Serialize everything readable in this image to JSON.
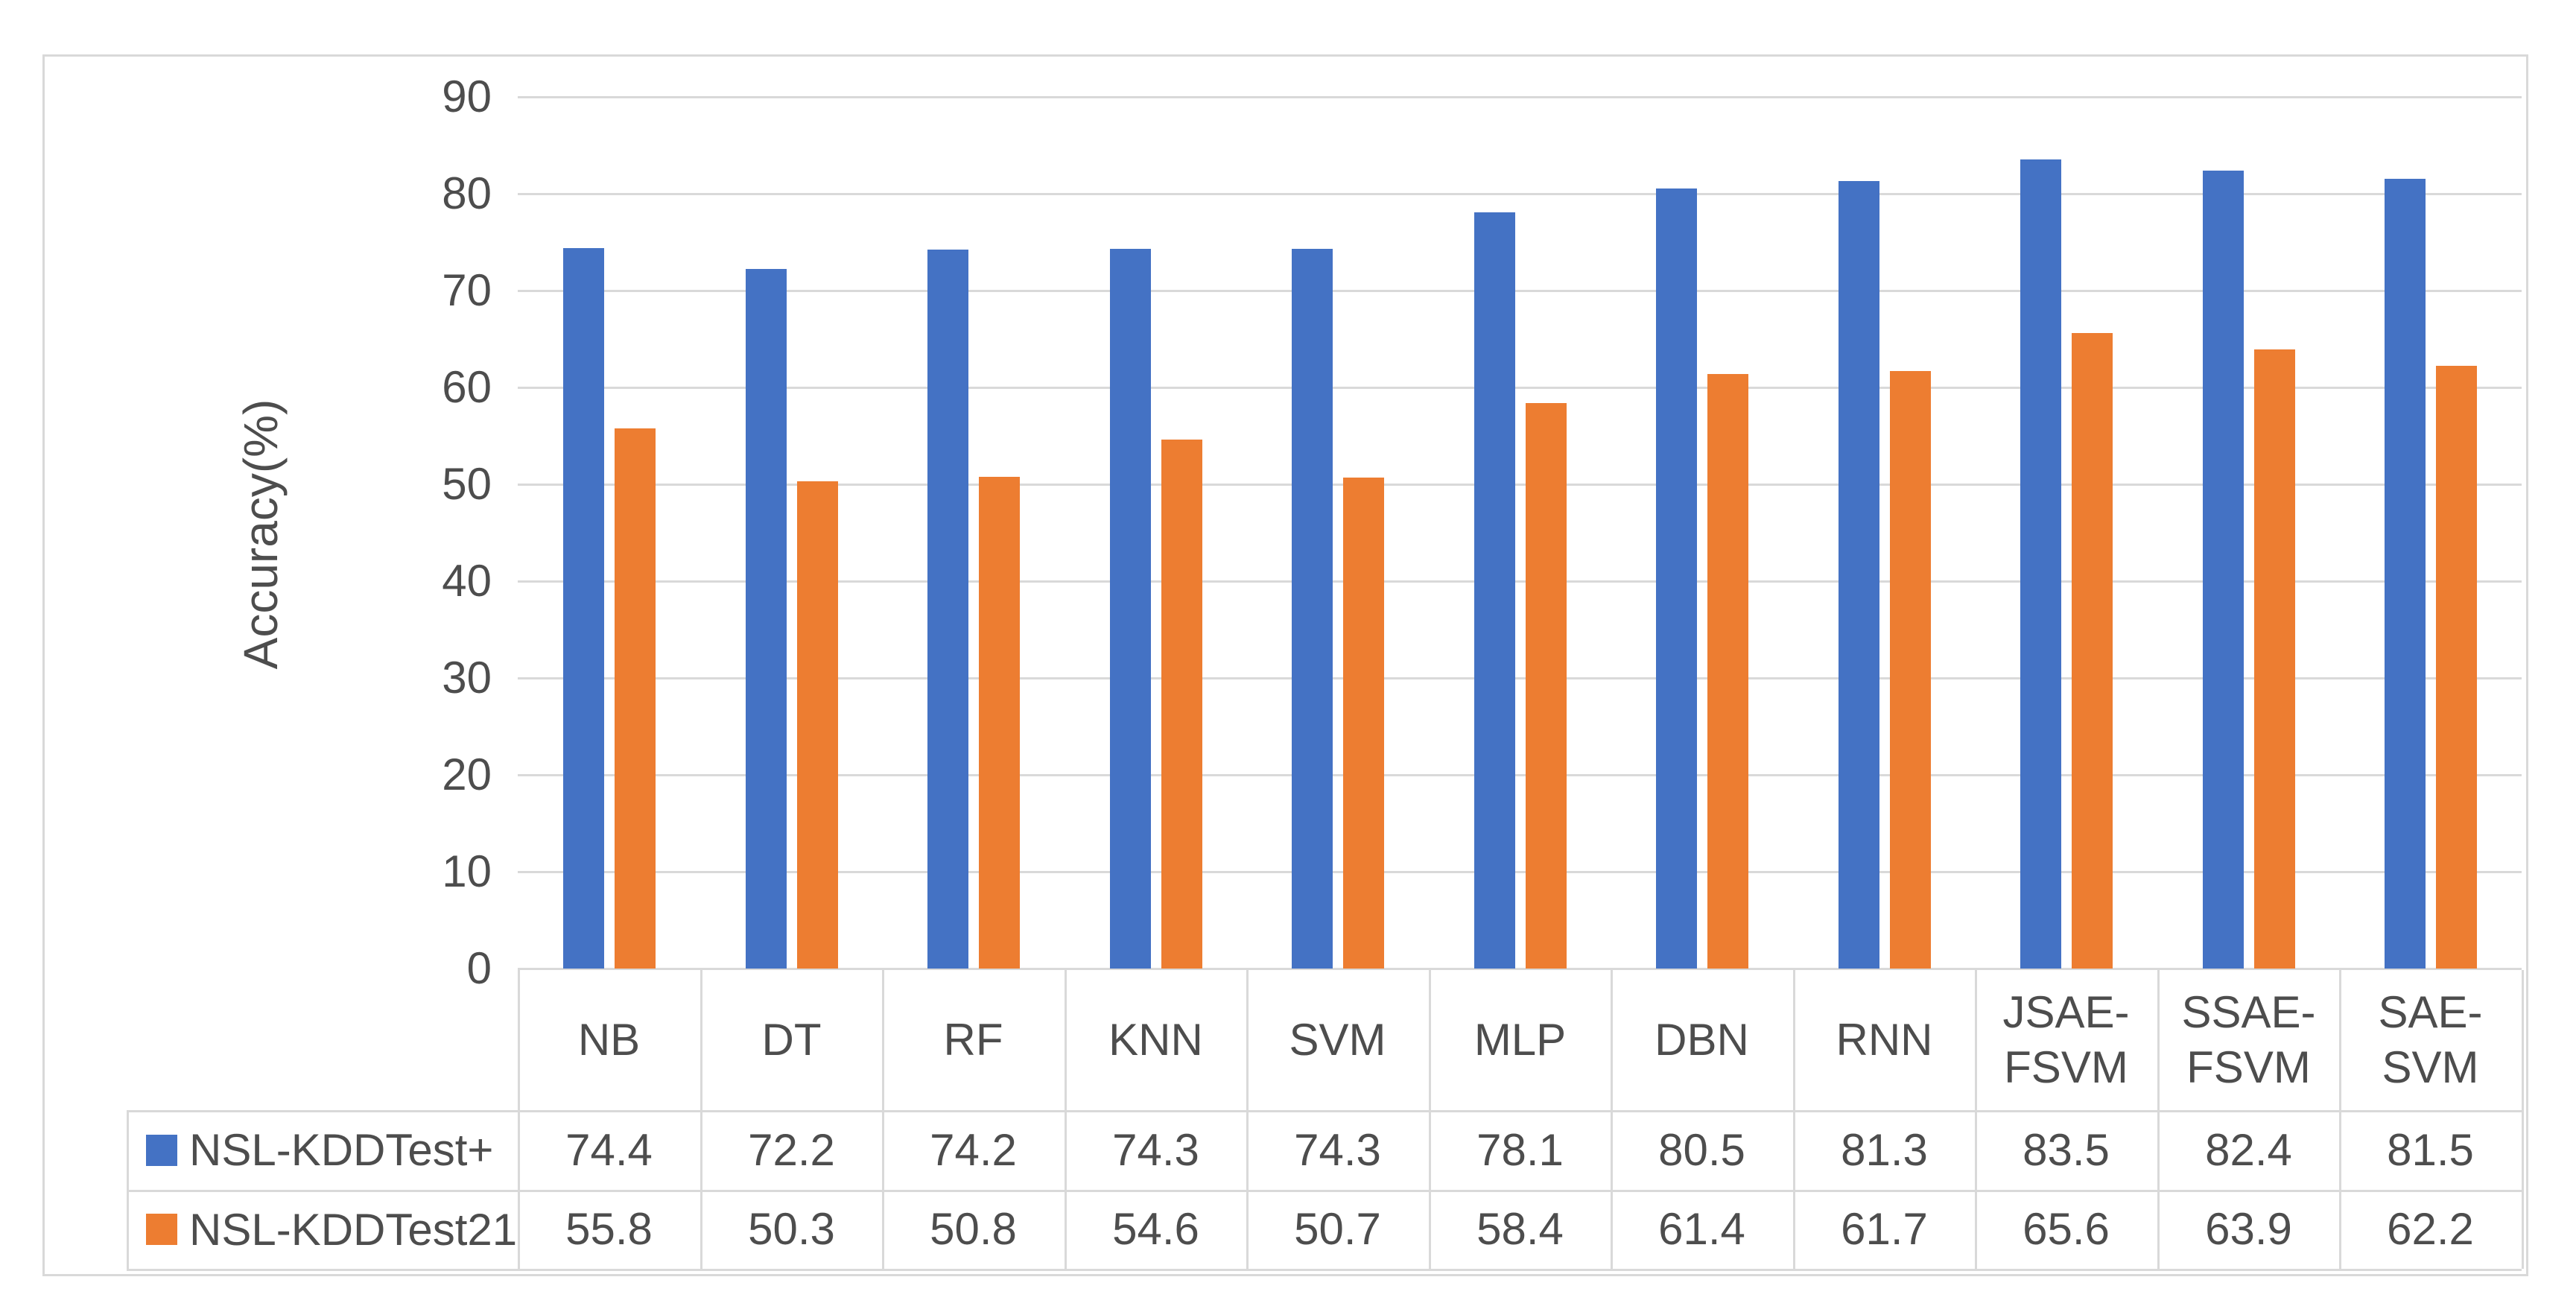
{
  "chart_data": {
    "type": "bar",
    "title": "",
    "xlabel": "",
    "ylabel": "Accuracy(%)",
    "ylim": [
      0,
      90
    ],
    "yticks": [
      0,
      10,
      20,
      30,
      40,
      50,
      60,
      70,
      80,
      90
    ],
    "grid": true,
    "data_table": true,
    "legend_position": "data-table-left",
    "categories": [
      "NB",
      "DT",
      "RF",
      "KNN",
      "SVM",
      "MLP",
      "DBN",
      "RNN",
      "JSAE-FSVM",
      "SSAE-FSVM",
      "SAE-SVM"
    ],
    "categories_display": [
      [
        "NB"
      ],
      [
        "DT"
      ],
      [
        "RF"
      ],
      [
        "KNN"
      ],
      [
        "SVM"
      ],
      [
        "MLP"
      ],
      [
        "DBN"
      ],
      [
        "RNN"
      ],
      [
        "JSAE-",
        "FSVM"
      ],
      [
        "SSAE-",
        "FSVM"
      ],
      [
        "SAE-",
        "SVM"
      ]
    ],
    "series": [
      {
        "name": "NSL-KDDTest+",
        "color": "#4472C4",
        "values": [
          74.4,
          72.2,
          74.2,
          74.3,
          74.3,
          78.1,
          80.5,
          81.3,
          83.5,
          82.4,
          81.5
        ]
      },
      {
        "name": "NSL-KDDTest21",
        "color": "#ED7D31",
        "values": [
          55.8,
          50.3,
          50.8,
          54.6,
          50.7,
          58.4,
          61.4,
          61.7,
          65.6,
          63.9,
          62.2
        ]
      }
    ]
  },
  "colors": {
    "grid": "#D9D9D9",
    "frame_border": "#D9D9D9",
    "text": "#4D4D4D",
    "background": "#FFFFFF"
  }
}
